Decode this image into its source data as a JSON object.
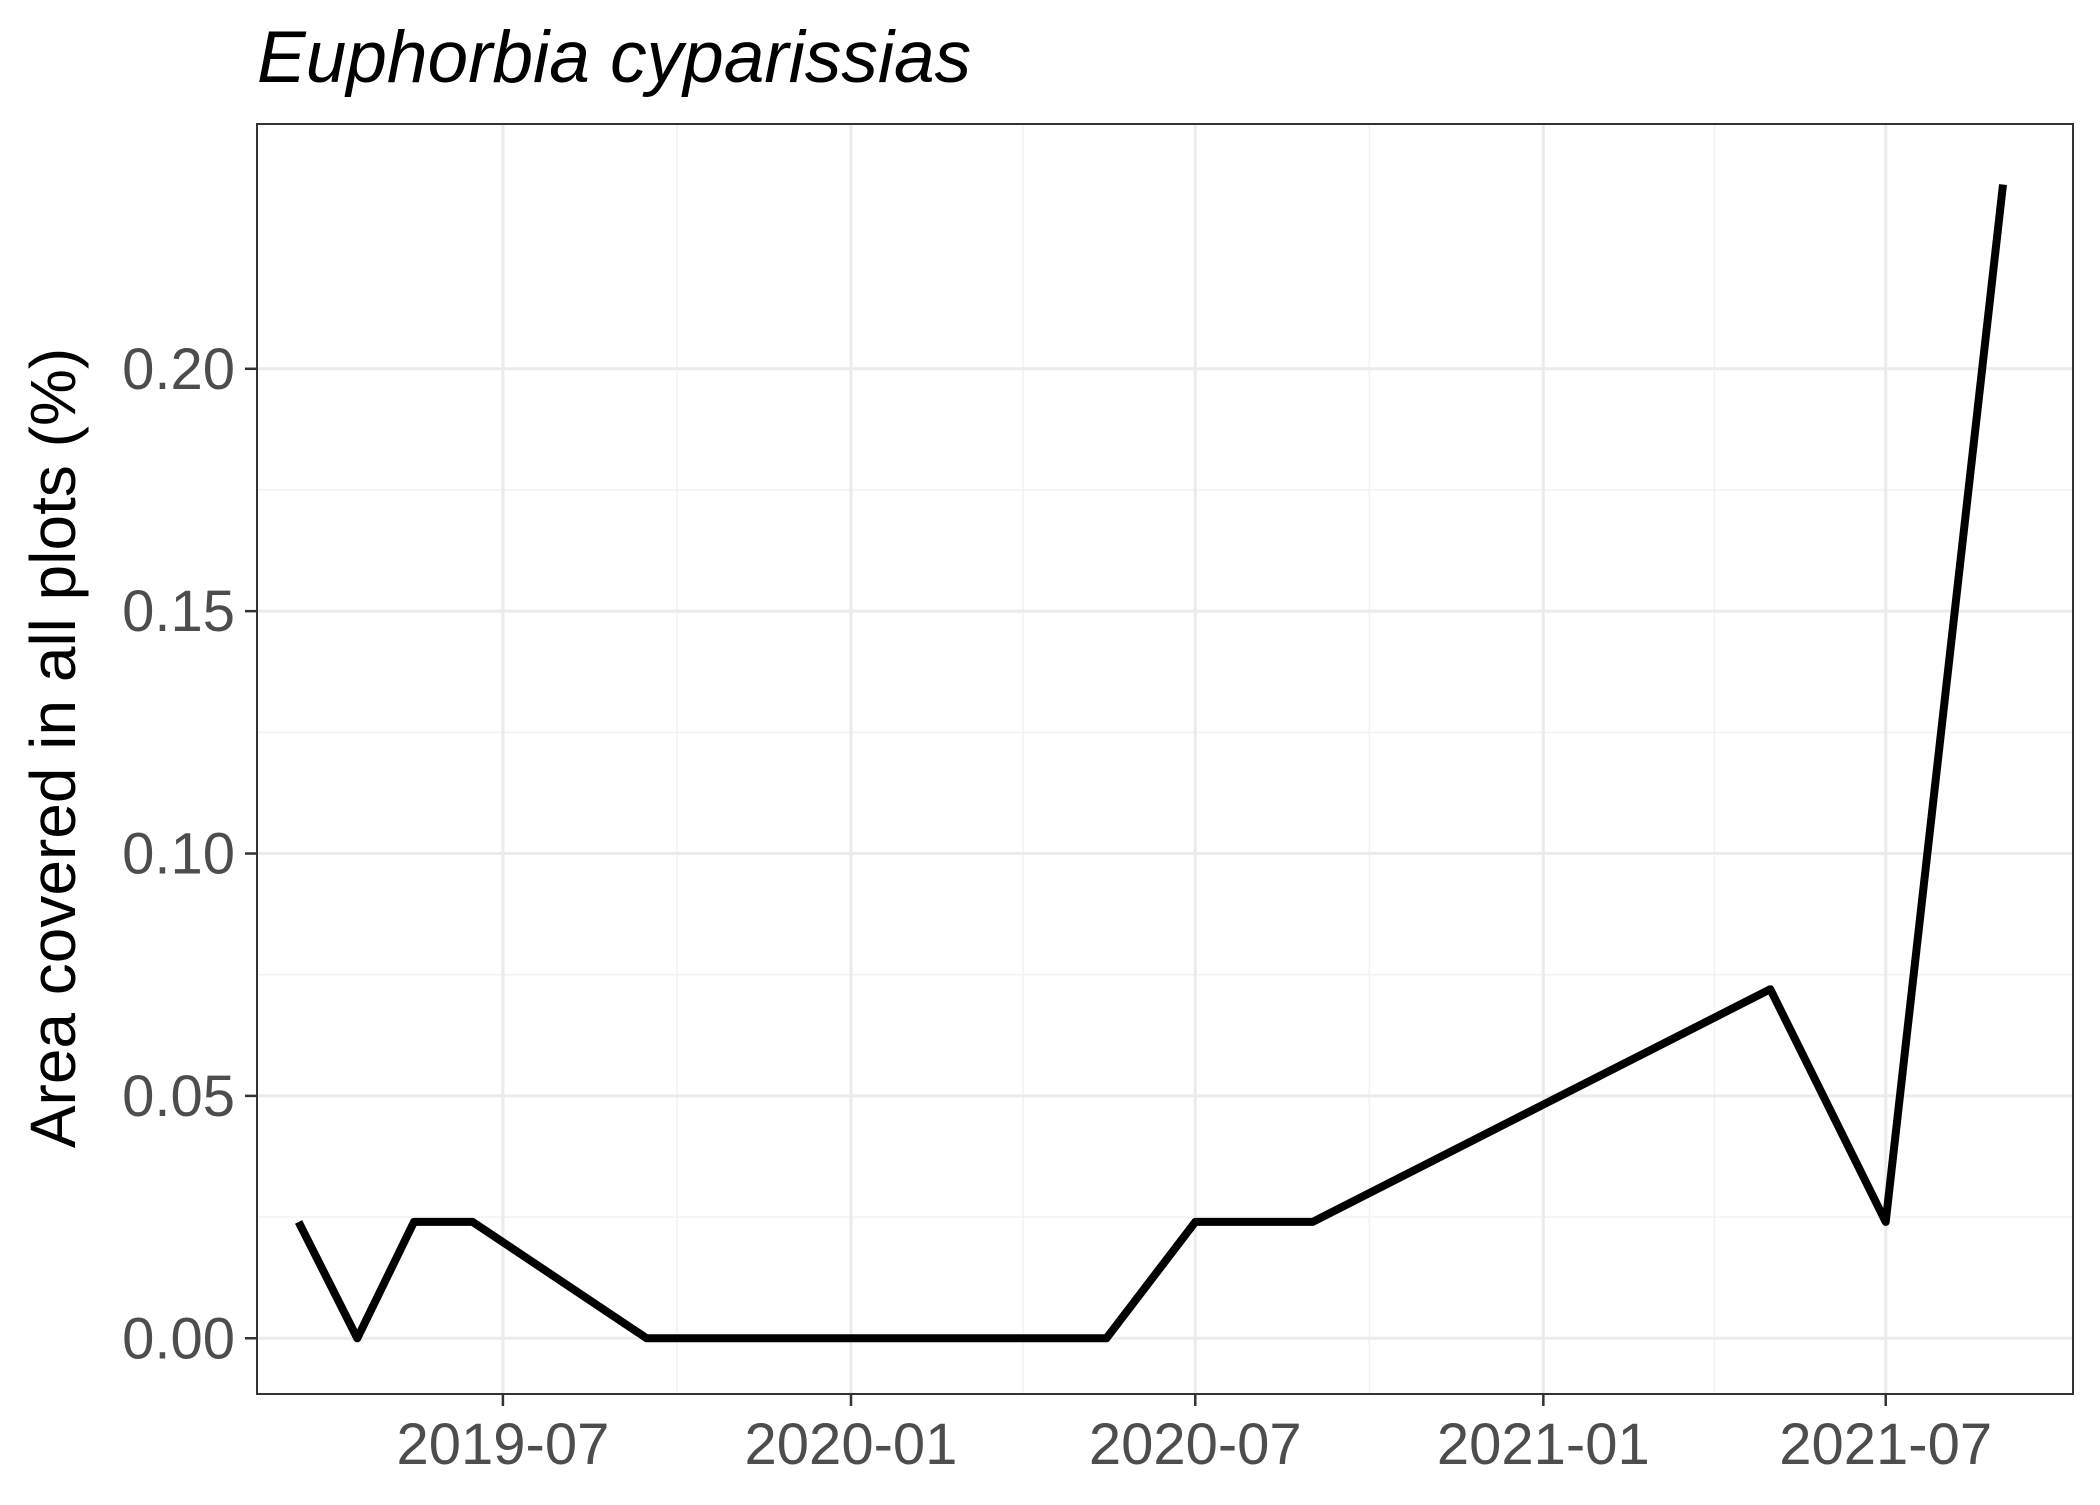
{
  "chart_data": {
    "type": "line",
    "title": "Euphorbia cyparissias",
    "xlabel": "",
    "ylabel": "Area covered in all plots (%)",
    "x_type": "date",
    "xlim": [
      "2019-02-21",
      "2021-10-08"
    ],
    "ylim": [
      -0.0115,
      0.2505
    ],
    "grid": true,
    "legend": "none",
    "x_ticks": [
      "2019-07-01",
      "2020-01-01",
      "2020-07-01",
      "2021-01-01",
      "2021-07-01"
    ],
    "x_tick_labels": [
      "2019-07",
      "2020-01",
      "2020-07",
      "2021-01",
      "2021-07"
    ],
    "y_ticks": [
      0.0,
      0.05,
      0.1,
      0.15,
      0.2
    ],
    "y_tick_labels": [
      "0.00",
      "0.05",
      "0.10",
      "0.15",
      "0.20"
    ],
    "series": [
      {
        "color": "#000000",
        "x": [
          "2019-03-15",
          "2019-04-15",
          "2019-05-15",
          "2019-06-15",
          "2019-09-15",
          "2020-05-15",
          "2020-07-01",
          "2020-09-01",
          "2021-05-01",
          "2021-07-01",
          "2021-09-01"
        ],
        "y": [
          0.024,
          0.0,
          0.024,
          0.024,
          0.0,
          0.0,
          0.024,
          0.024,
          0.072,
          0.024,
          0.238
        ]
      }
    ]
  }
}
